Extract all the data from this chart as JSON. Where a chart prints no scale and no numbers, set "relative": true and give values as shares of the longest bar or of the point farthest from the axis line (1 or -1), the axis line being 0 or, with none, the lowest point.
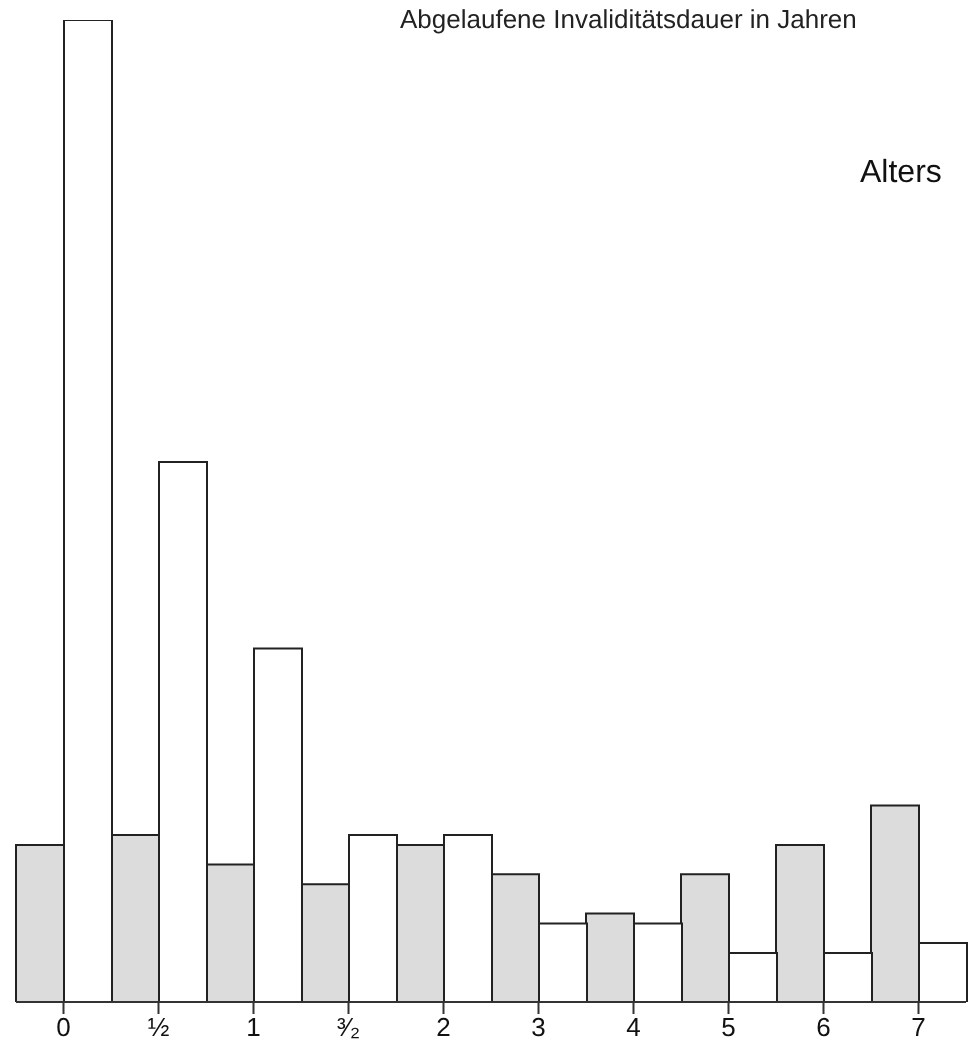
{
  "chart_data": {
    "type": "bar",
    "title": "Abgelaufene Invaliditätsdauer in Jahren",
    "annotations": [
      "Alters"
    ],
    "relative": true,
    "categories": [
      "0",
      "½",
      "1",
      "³⁄₂",
      "2",
      "3",
      "4",
      "5",
      "6",
      "7"
    ],
    "series": [
      {
        "color": "#dcdcdc",
        "values": [
          0.16,
          0.17,
          0.14,
          0.12,
          0.16,
          0.13,
          0.09,
          0.13,
          0.16,
          0.2
        ]
      },
      {
        "color": "#ffffff",
        "values": [
          1,
          0.55,
          0.36,
          0.17,
          0.17,
          0.08,
          0.08,
          0.05,
          0.05,
          0.06
        ]
      }
    ]
  }
}
